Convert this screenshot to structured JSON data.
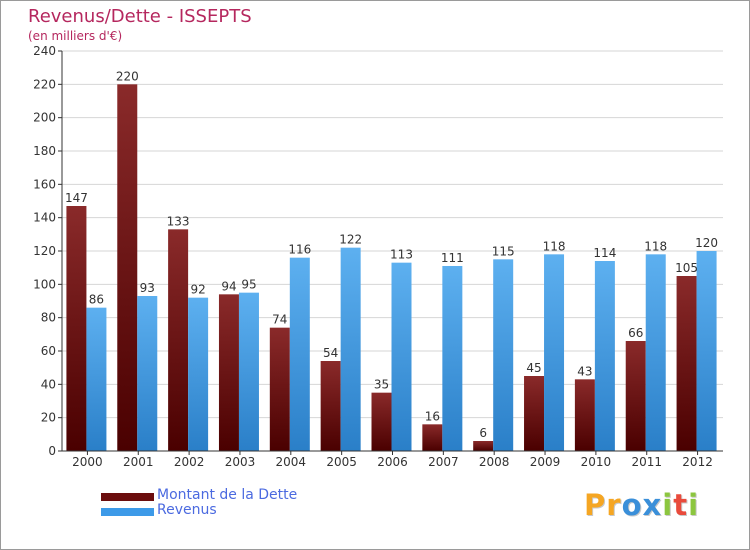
{
  "header": {
    "title": "Revenus/Dette - ISSEPTS",
    "subtitle": "(en milliers d'€)"
  },
  "legend": [
    {
      "label": "Montant de la Dette",
      "color": "#6b0d0d"
    },
    {
      "label": "Revenus",
      "color": "#3d9ae8"
    }
  ],
  "logo": {
    "letters": [
      "P",
      "r",
      "o",
      "x",
      "i",
      "t",
      "i"
    ],
    "colors": [
      "#f5a623",
      "#f5a623",
      "#3a8fd9",
      "#3a8fd9",
      "#8cc63f",
      "#e94b3c",
      "#8cc63f"
    ]
  },
  "chart_data": {
    "type": "bar",
    "title": "Revenus/Dette - ISSEPTS",
    "subtitle": "(en milliers d'€)",
    "categories": [
      "2000",
      "2001",
      "2002",
      "2003",
      "2004",
      "2005",
      "2006",
      "2007",
      "2008",
      "2009",
      "2010",
      "2011",
      "2012"
    ],
    "series": [
      {
        "name": "Montant de la Dette",
        "color": "#7a1515",
        "values": [
          147,
          220,
          133,
          94,
          74,
          54,
          35,
          16,
          6,
          45,
          43,
          66,
          105
        ]
      },
      {
        "name": "Revenus",
        "color": "#4aa3ea",
        "values": [
          86,
          93,
          92,
          95,
          116,
          122,
          113,
          111,
          115,
          118,
          114,
          118,
          120
        ]
      }
    ],
    "ylim": [
      0,
      240
    ],
    "yticks": [
      0,
      20,
      40,
      60,
      80,
      100,
      120,
      140,
      160,
      180,
      200,
      220,
      240
    ],
    "grid": true,
    "legend_position": "bottom-left"
  }
}
